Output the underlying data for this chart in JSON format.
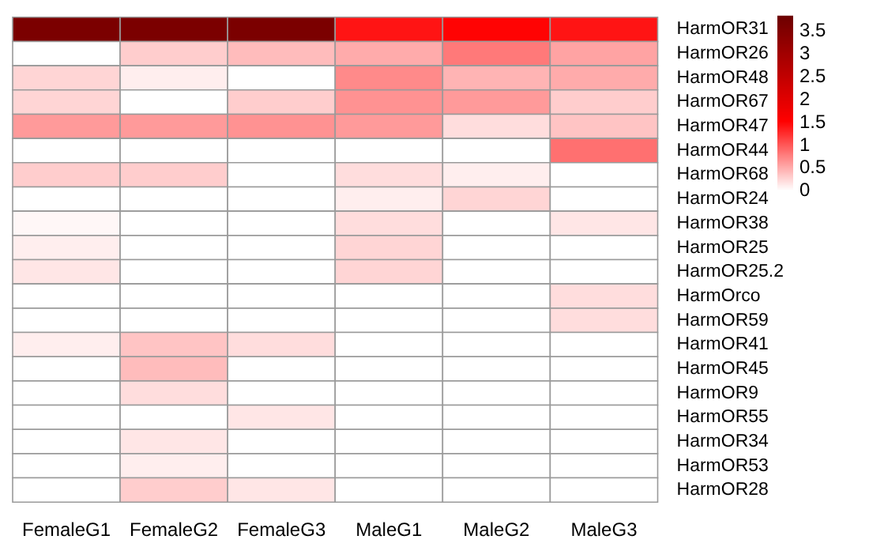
{
  "chart_data": {
    "type": "heatmap",
    "categories": [
      "FemaleG1",
      "FemaleG2",
      "FemaleG3",
      "MaleG1",
      "MaleG2",
      "MaleG3"
    ],
    "y_categories": [
      "HarmOR31",
      "HarmOR26",
      "HarmOR48",
      "HarmOR67",
      "HarmOR47",
      "HarmOR44",
      "HarmOR68",
      "HarmOR24",
      "HarmOR38",
      "HarmOR25",
      "HarmOR25.2",
      "HarmOrco",
      "HarmOR59",
      "HarmOR41",
      "HarmOR45",
      "HarmOR9",
      "HarmOR55",
      "HarmOR34",
      "HarmOR53",
      "HarmOR28"
    ],
    "cells": [
      [
        3.6,
        3.6,
        3.6,
        1.4,
        1.5,
        1.4
      ],
      [
        0,
        0.3,
        0.4,
        0.5,
        0.8,
        0.55
      ],
      [
        0.25,
        0.1,
        0,
        0.7,
        0.45,
        0.5
      ],
      [
        0.25,
        0,
        0.3,
        0.65,
        0.6,
        0.3
      ],
      [
        0.6,
        0.6,
        0.65,
        0.6,
        0.2,
        0.35
      ],
      [
        0,
        0,
        0,
        0,
        0,
        0.85
      ],
      [
        0.3,
        0.3,
        0,
        0.2,
        0.1,
        0
      ],
      [
        0,
        0,
        0,
        0.1,
        0.25,
        0
      ],
      [
        0.05,
        0,
        0,
        0.2,
        0,
        0.15
      ],
      [
        0.1,
        0,
        0,
        0.25,
        0,
        0
      ],
      [
        0.15,
        0,
        0,
        0.25,
        0,
        0
      ],
      [
        0,
        0,
        0,
        0,
        0,
        0.2
      ],
      [
        0,
        0,
        0,
        0,
        0,
        0.2
      ],
      [
        0.1,
        0.35,
        0.2,
        0,
        0,
        0
      ],
      [
        0,
        0.4,
        0,
        0,
        0,
        0
      ],
      [
        0,
        0.2,
        0,
        0,
        0,
        0
      ],
      [
        0,
        0,
        0.15,
        0,
        0,
        0
      ],
      [
        0,
        0.15,
        0,
        0,
        0,
        0
      ],
      [
        0,
        0.1,
        0,
        0,
        0,
        0
      ],
      [
        0,
        0.3,
        0.15,
        0,
        0,
        0
      ]
    ],
    "clim": [
      0,
      3.8
    ],
    "cticks": [
      0,
      0.5,
      1,
      1.5,
      2,
      2.5,
      3,
      3.5
    ]
  }
}
